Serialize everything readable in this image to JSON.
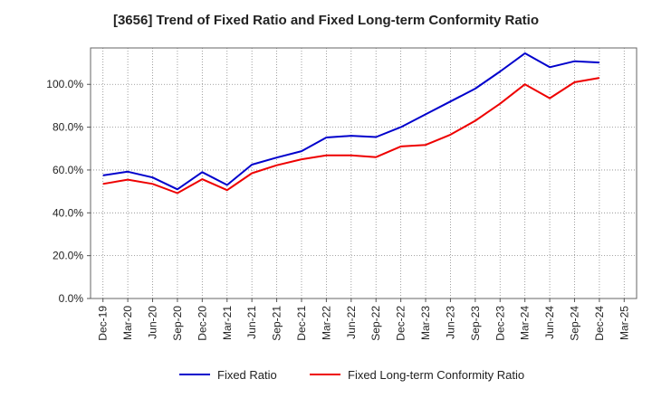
{
  "chart_data": {
    "type": "line",
    "title": "[3656]  Trend of Fixed Ratio and Fixed Long-term Conformity Ratio",
    "x": [
      "Dec-19",
      "Mar-20",
      "Jun-20",
      "Sep-20",
      "Dec-20",
      "Mar-21",
      "Jun-21",
      "Sep-21",
      "Dec-21",
      "Mar-22",
      "Jun-22",
      "Sep-22",
      "Dec-22",
      "Mar-23",
      "Jun-23",
      "Sep-23",
      "Dec-23",
      "Mar-24",
      "Jun-24",
      "Sep-24",
      "Dec-24",
      "Mar-25"
    ],
    "y_ticks": [
      "0.0%",
      "20.0%",
      "40.0%",
      "60.0%",
      "80.0%",
      "100.0%"
    ],
    "ylim": [
      0,
      117
    ],
    "grid": true,
    "legend_position": "bottom",
    "series": [
      {
        "name": "Fixed Ratio",
        "color": "#0000cc",
        "values": [
          57.5,
          59.2,
          56.5,
          51.0,
          59.0,
          53.0,
          62.5,
          65.8,
          68.8,
          75.2,
          76.0,
          75.4,
          80.0,
          86.0,
          92.0,
          98.0,
          106.0,
          114.5,
          108.0,
          110.8,
          110.2,
          null
        ]
      },
      {
        "name": "Fixed Long-term Conformity Ratio",
        "color": "#ee0000",
        "values": [
          53.5,
          55.5,
          53.5,
          49.2,
          55.7,
          50.6,
          58.5,
          62.2,
          65.0,
          66.8,
          66.8,
          66.0,
          71.0,
          71.7,
          76.5,
          83.0,
          91.0,
          100.0,
          93.5,
          101.0,
          103.0,
          null
        ]
      }
    ]
  }
}
